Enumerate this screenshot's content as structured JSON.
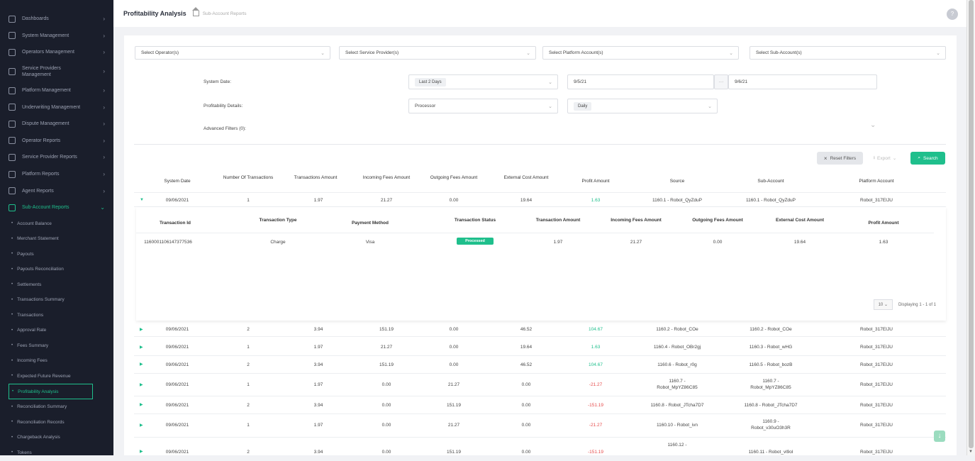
{
  "sidebar": {
    "items": [
      {
        "label": "Dashboards"
      },
      {
        "label": "System Management"
      },
      {
        "label": "Operators Management"
      },
      {
        "label": "Service Providers Management"
      },
      {
        "label": "Platform Management"
      },
      {
        "label": "Underwriting Management"
      },
      {
        "label": "Dispute Management"
      },
      {
        "label": "Operator Reports"
      },
      {
        "label": "Service Provider Reports"
      },
      {
        "label": "Platform Reports"
      },
      {
        "label": "Agent Reports"
      },
      {
        "label": "Sub-Account Reports"
      }
    ],
    "sub_items": [
      {
        "label": "Account Balance"
      },
      {
        "label": "Merchant Statement"
      },
      {
        "label": "Payouts"
      },
      {
        "label": "Payouts Reconciliation"
      },
      {
        "label": "Settlements"
      },
      {
        "label": "Transactions Summary"
      },
      {
        "label": "Transactions"
      },
      {
        "label": "Approval Rate"
      },
      {
        "label": "Fees Summary"
      },
      {
        "label": "Incoming Fees"
      },
      {
        "label": "Expected Future Revenue"
      },
      {
        "label": "Profitability Analysis"
      },
      {
        "label": "Reconciliation Summary"
      },
      {
        "label": "Reconciliation Records"
      },
      {
        "label": "Chargeback Analysis"
      },
      {
        "label": "Tokens"
      }
    ],
    "accent_color": "#1fbf8c"
  },
  "header": {
    "title": "Profitability Analysis",
    "breadcrumb": "Sub-Account Reports",
    "help_label": "?"
  },
  "filters": {
    "operator_placeholder": "Select Operator(s)",
    "service_provider_placeholder": "Select Service Provider(s)",
    "platform_account_placeholder": "Select Platform Account(s)",
    "sub_account_placeholder": "Select Sub-Account(s)",
    "system_date_label": "System Date:",
    "system_date_range": "Last 2 Days",
    "date_from": "9/5/21",
    "date_separator": "···",
    "date_to": "9/6/21",
    "profitability_label": "Profitability Details:",
    "profitability_value": "Processor",
    "period_value": "Daily",
    "advanced_label": "Advanced Filters (0):"
  },
  "actions": {
    "reset": "Reset Filters",
    "export": "Export",
    "search": "Search"
  },
  "table": {
    "headers": [
      "System Date",
      "Number Of Transactions",
      "Transactions Amount",
      "Incoming Fees Amount",
      "Outgoing Fees Amount",
      "External Cost Amount",
      "Profit Amount",
      "Source",
      "Sub-Account",
      "Platform Account"
    ],
    "rows": [
      {
        "date": "09/06/2021",
        "count": "1",
        "amount": "1.97",
        "incoming": "21.27",
        "outgoing": "0.00",
        "external": "19.64",
        "profit": "1.63",
        "profit_status": "positive",
        "source": "1160.1 - Robot_QyZduP",
        "sub_account": "1160.1 - Robot_QyZduP",
        "platform": "Robot_317EIJU",
        "expanded": true
      },
      {
        "date": "09/06/2021",
        "count": "2",
        "amount": "3.94",
        "incoming": "151.19",
        "outgoing": "0.00",
        "external": "46.52",
        "profit": "104.67",
        "profit_status": "positive",
        "source": "1160.2 - Robot_COe",
        "sub_account": "1160.2 - Robot_COe",
        "platform": "Robot_317EIJU"
      },
      {
        "date": "09/06/2021",
        "count": "1",
        "amount": "1.97",
        "incoming": "21.27",
        "outgoing": "0.00",
        "external": "19.64",
        "profit": "1.63",
        "profit_status": "positive",
        "source": "1160.4 - Robot_OBr2gj",
        "sub_account": "1160.3 - Robot_wHG",
        "platform": "Robot_317EIJU"
      },
      {
        "date": "09/06/2021",
        "count": "2",
        "amount": "3.94",
        "incoming": "151.19",
        "outgoing": "0.00",
        "external": "46.52",
        "profit": "104.67",
        "profit_status": "positive",
        "source": "1160.6 - Robot_r0g",
        "sub_account": "1160.5 - Robot_bozB",
        "platform": "Robot_317EIJU"
      },
      {
        "date": "09/06/2021",
        "count": "1",
        "amount": "1.97",
        "incoming": "0.00",
        "outgoing": "21.27",
        "external": "0.00",
        "profit": "-21.27",
        "profit_status": "negative",
        "source": "1160.7 - Robot_MpYZ86C85",
        "sub_account": "1160.7 - Robot_MpYZ86C85",
        "platform": "Robot_317EIJU"
      },
      {
        "date": "09/06/2021",
        "count": "2",
        "amount": "3.94",
        "incoming": "0.00",
        "outgoing": "151.19",
        "external": "0.00",
        "profit": "-151.19",
        "profit_status": "negative",
        "source": "1160.8 - Robot_JTcha7D7",
        "sub_account": "1160.8 - Robot_JTcha7D7",
        "platform": "Robot_317EIJU"
      },
      {
        "date": "09/06/2021",
        "count": "1",
        "amount": "1.97",
        "incoming": "0.00",
        "outgoing": "21.27",
        "external": "0.00",
        "profit": "-21.27",
        "profit_status": "negative",
        "source": "1160.10 - Robot_ivn",
        "sub_account": "1160.9 - Robot_v30uO3h3R",
        "platform": "Robot_317EIJU"
      },
      {
        "date": "09/06/2021",
        "count": "2",
        "amount": "3.94",
        "incoming": "0.00",
        "outgoing": "151.19",
        "external": "0.00",
        "profit": "-151.19",
        "profit_status": "negative",
        "source": "1160.12 -",
        "sub_account": "1160.11 - Robot_vl9ol",
        "platform": "Robot_317EIJU"
      }
    ]
  },
  "detail": {
    "headers": [
      "Transaction Id",
      "Transaction Type",
      "Payment Method",
      "Transaction Status",
      "Transaction Amount",
      "Incoming Fees Amount",
      "Outgoing Fees Amount",
      "External Cost Amount",
      "Profit Amount"
    ],
    "row": {
      "id": "1160001106147377536",
      "type": "Charge",
      "method": "Visa",
      "status": "Processed",
      "amount": "1.97",
      "incoming": "21.27",
      "outgoing": "0.00",
      "external": "19.64",
      "profit": "1.63"
    },
    "page_size": "10",
    "displaying": "Displaying 1 - 1 of 1"
  }
}
